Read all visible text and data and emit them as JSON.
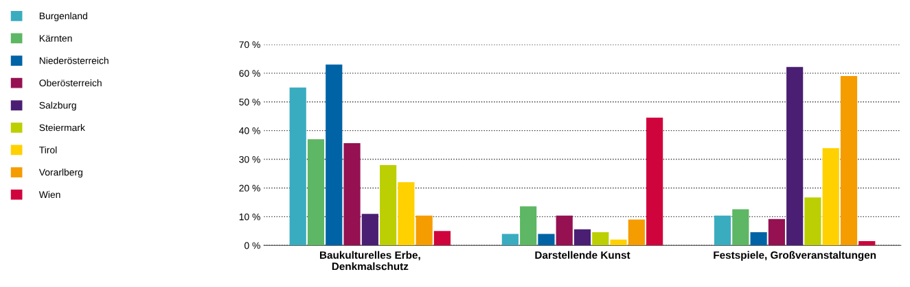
{
  "chart_data": {
    "type": "bar",
    "categories": [
      "Baukulturelles Erbe,\nDenkmalschutz",
      "Darstellende Kunst",
      "Festspiele, Großveranstaltungen"
    ],
    "series": [
      {
        "name": "Burgenland",
        "color": "#3aacbf",
        "values": [
          55,
          4,
          10.4
        ]
      },
      {
        "name": "Kärnten",
        "color": "#5db764",
        "values": [
          37,
          13.6,
          12.6
        ]
      },
      {
        "name": "Niederösterreich",
        "color": "#0063a6",
        "values": [
          63,
          4,
          4.6
        ]
      },
      {
        "name": "Oberösterreich",
        "color": "#951152",
        "values": [
          35.6,
          10.4,
          9.2
        ]
      },
      {
        "name": "Salzburg",
        "color": "#4a1f73",
        "values": [
          11,
          5.6,
          62.2
        ]
      },
      {
        "name": "Steiermark",
        "color": "#bccf02",
        "values": [
          28,
          4.6,
          16.7
        ]
      },
      {
        "name": "Tirol",
        "color": "#ffd100",
        "values": [
          22,
          2,
          33.9
        ]
      },
      {
        "name": "Vorarlberg",
        "color": "#f59c00",
        "values": [
          10.4,
          9,
          59
        ]
      },
      {
        "name": "Wien",
        "color": "#d0043c",
        "values": [
          5,
          44.5,
          1.5
        ]
      }
    ],
    "ylim": [
      0,
      70
    ],
    "yticks": [
      {
        "value": 0,
        "label": "0 %"
      },
      {
        "value": 10,
        "label": "10 %"
      },
      {
        "value": 20,
        "label": "20 %"
      },
      {
        "value": 30,
        "label": "30 %"
      },
      {
        "value": 40,
        "label": "40 %"
      },
      {
        "value": 50,
        "label": "50 %"
      },
      {
        "value": 60,
        "label": "60 %"
      },
      {
        "value": 70,
        "label": "70 %"
      }
    ],
    "grid": "y",
    "legend": "left"
  }
}
